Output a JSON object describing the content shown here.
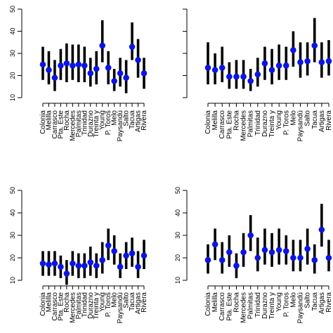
{
  "chart_data": [
    {
      "type": "scatter",
      "panel": "top-left",
      "categories": [
        "Colonia",
        "Melilla",
        "Carrasco",
        "Pta. Este",
        "Rocha",
        "Mercedes",
        "Palmitas",
        "Trinidad",
        "Durazno",
        "Treinta y",
        "Young",
        "P. Toros",
        "Melo",
        "Paysandú",
        "Salto",
        "Tacua",
        "Artigas",
        "Rivera"
      ],
      "values": [
        25,
        22.5,
        19,
        24.5,
        25.5,
        24.5,
        25,
        24.5,
        21,
        23,
        33.5,
        23.5,
        17.5,
        21,
        19,
        33,
        27,
        21
      ],
      "lower": [
        18,
        16,
        13,
        18,
        17,
        18,
        17,
        17,
        15,
        16,
        26,
        16,
        13,
        15,
        12,
        27,
        19,
        14
      ],
      "upper": [
        33,
        31,
        27,
        32,
        34.5,
        34,
        34,
        33,
        28,
        31,
        45,
        31,
        23,
        28,
        27,
        44,
        36.5,
        28
      ],
      "ylim": [
        10,
        50
      ],
      "yticks": [
        "10",
        "20",
        "30",
        "40",
        "50"
      ],
      "grid": false
    },
    {
      "type": "scatter",
      "panel": "top-right",
      "categories": [
        "Colonia",
        "Melilla",
        "Carrasco",
        "Pta. Este",
        "Rocha",
        "Mercedes",
        "Palmitas",
        "Trinidad",
        "Durazno",
        "Treinta y",
        "Young",
        "P. Toros",
        "Melo",
        "Paysandú",
        "Salto",
        "Tacua",
        "Artigas",
        "Rivera"
      ],
      "values": [
        23.5,
        22.5,
        23.5,
        19.5,
        19.5,
        19.5,
        17.5,
        20.5,
        25.5,
        22.5,
        24.5,
        24.5,
        31.5,
        26,
        26.5,
        33.5,
        26,
        26.5
      ],
      "lower": [
        16,
        16,
        17,
        14,
        14,
        14,
        13,
        15,
        18,
        16,
        18,
        18,
        24,
        19,
        20,
        26,
        19,
        20
      ],
      "upper": [
        35,
        30,
        33,
        26,
        27,
        27,
        23,
        28,
        33,
        32,
        34,
        33,
        40,
        35,
        35,
        46,
        35,
        36
      ]
    },
    {
      "type": "scatter",
      "panel": "bottom-left",
      "categories": [
        "Colonia",
        "Melilla",
        "Carrasco",
        "Pta. Este",
        "Rocha",
        "Mercedes",
        "Palmitas",
        "Trinidad",
        "Durazno",
        "Treinta y",
        "Young",
        "P. Toros",
        "Melo",
        "Paysandú",
        "Salto",
        "Tacua",
        "Artigas",
        "Rivera"
      ],
      "values": [
        17.5,
        17,
        17.5,
        16,
        13,
        17.5,
        16.5,
        16.5,
        18,
        16.5,
        19,
        25.5,
        23,
        16,
        21,
        22,
        16,
        21
      ],
      "lower": [
        12,
        12,
        12,
        11,
        8,
        12,
        11,
        11,
        12,
        11,
        13,
        19,
        17,
        11,
        15,
        16,
        11,
        15
      ],
      "upper": [
        23,
        23,
        23,
        21,
        19,
        23,
        22,
        22,
        25,
        22,
        27,
        33,
        30,
        22,
        27,
        29,
        23,
        28
      ],
      "ylim": [
        10,
        50
      ],
      "yticks": [
        "10",
        "20",
        "30",
        "40",
        "50"
      ]
    },
    {
      "type": "scatter",
      "panel": "bottom-right",
      "categories": [
        "Colonia",
        "Melilla",
        "Carrasco",
        "Pta. Este",
        "Rocha",
        "Mercedes",
        "Palmitas",
        "Trinidad",
        "Durazno",
        "Treinta y",
        "Young",
        "P. Toros",
        "Melo",
        "Paysandú",
        "Salto",
        "Tacua",
        "Artigas",
        "Rivera"
      ],
      "values": [
        19,
        26,
        19,
        22.5,
        16.5,
        22.5,
        30,
        20,
        23.5,
        22.5,
        23.5,
        23,
        20,
        20,
        24,
        19,
        32.5,
        20
      ],
      "lower": [
        13,
        19,
        13,
        16,
        11,
        16,
        23,
        14,
        17,
        16,
        17,
        17,
        14,
        14,
        17,
        13,
        25,
        14
      ],
      "upper": [
        26,
        33,
        27,
        30,
        22,
        31,
        39,
        29,
        33,
        31,
        33,
        30,
        28,
        28,
        33,
        26,
        44,
        28
      ],
      "ylim": [
        10,
        50
      ],
      "yticks": [
        "10",
        "20",
        "30",
        "40",
        "50"
      ]
    }
  ]
}
